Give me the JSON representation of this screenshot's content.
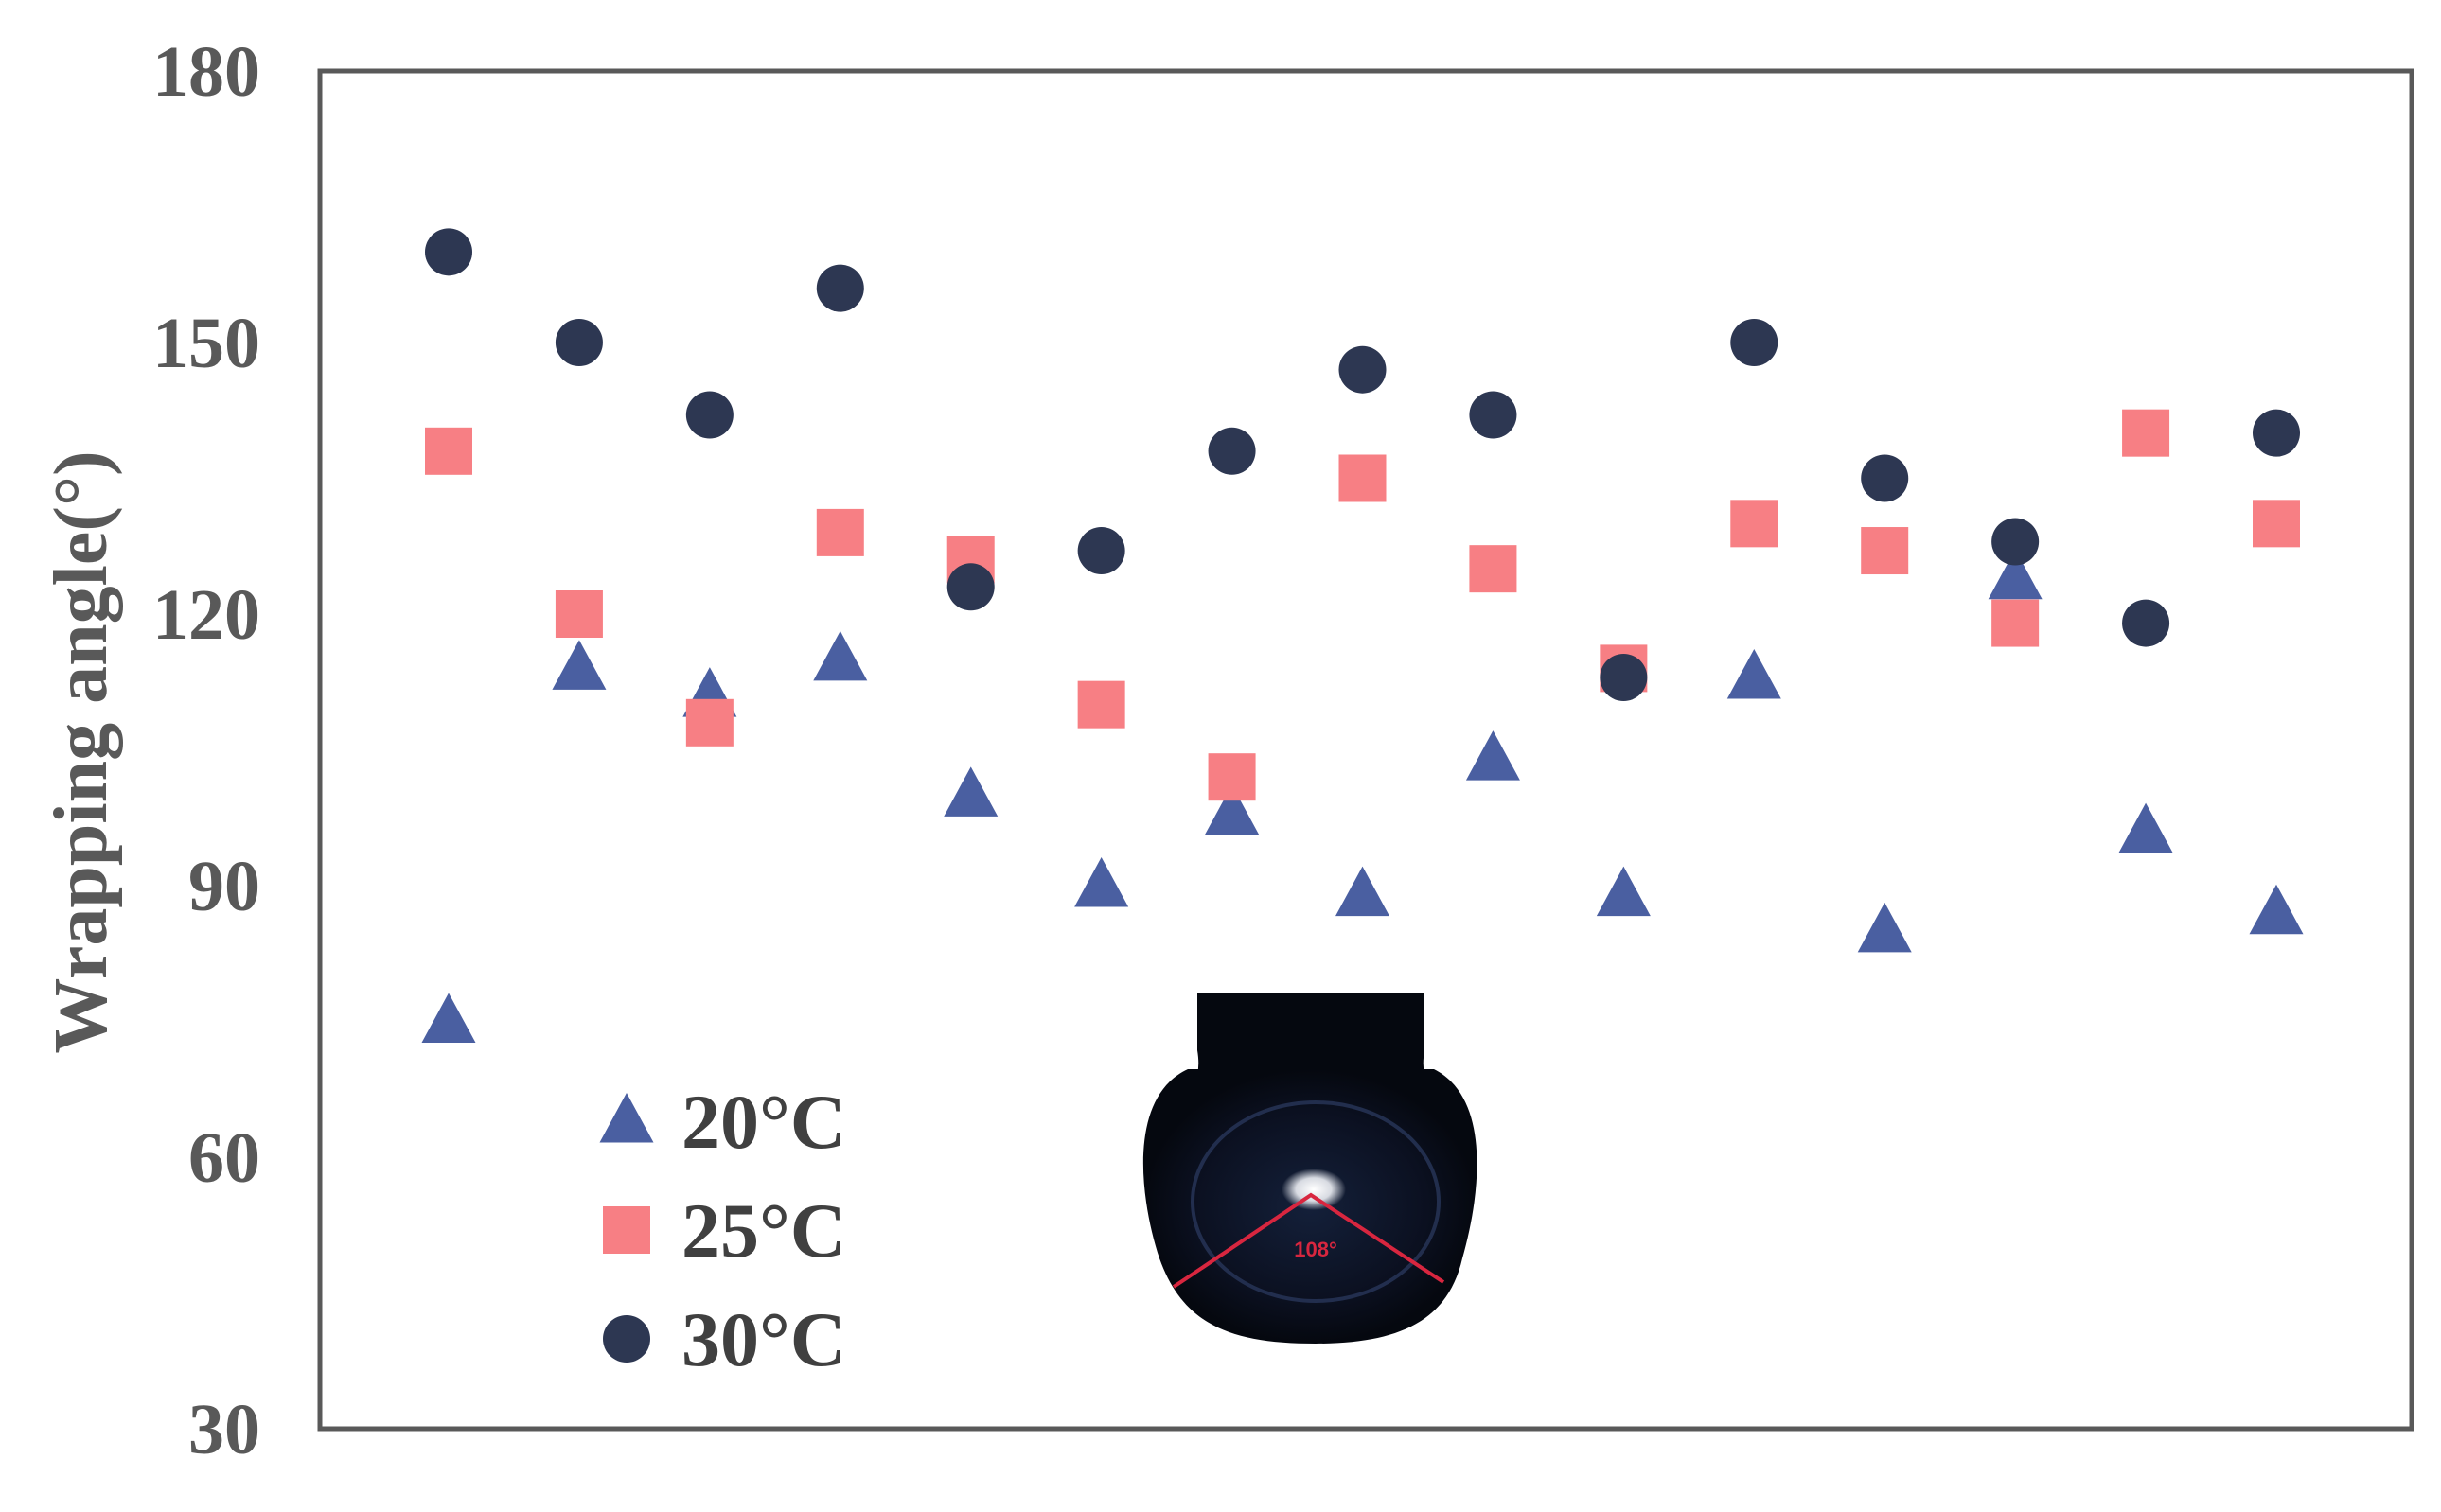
{
  "chart_data": {
    "type": "scatter",
    "title": "",
    "xlabel": "",
    "ylabel": "Wrapping angle(°)",
    "ylim": [
      30,
      180
    ],
    "yticks": [
      "30",
      "60",
      "90",
      "120",
      "150",
      "180"
    ],
    "grid": false,
    "x": [
      1,
      2,
      3,
      4,
      5,
      6,
      7,
      8,
      9,
      10,
      11,
      12,
      13,
      14,
      15
    ],
    "xlim": [
      0,
      16
    ],
    "legend_position": "bottom-left",
    "series": [
      {
        "name": "20°C",
        "marker": "triangle",
        "color": "#4a5fa1",
        "values": [
          75,
          114,
          111,
          115,
          100,
          90,
          98,
          89,
          104,
          89,
          113,
          85,
          124,
          96,
          87
        ]
      },
      {
        "name": "25°C",
        "marker": "square",
        "color": "#f77f84",
        "values": [
          138,
          120,
          108,
          129,
          126,
          110,
          102,
          135,
          125,
          114,
          130,
          127,
          119,
          140,
          130
        ]
      },
      {
        "name": "30°C",
        "marker": "circle",
        "color": "#2d3752",
        "values": [
          160,
          150,
          142,
          156,
          123,
          127,
          138,
          147,
          142,
          113,
          150,
          135,
          128,
          119,
          140
        ]
      }
    ],
    "inset": {
      "angle_label": "108°"
    }
  }
}
